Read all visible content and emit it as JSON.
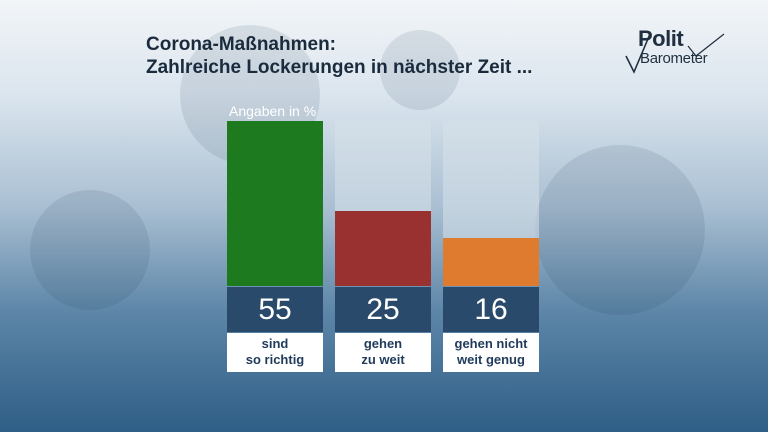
{
  "header": {
    "title_line1": "Corona-Maßnahmen:",
    "title_line2": "Zahlreiche Lockerungen in nächster Zeit ..."
  },
  "logo": {
    "line1": "Polit",
    "line2": "Barometer"
  },
  "colors": {
    "bar_green": "#1e7a1e",
    "bar_red": "#9a3131",
    "bar_orange": "#df7b2e",
    "value_band": "#2a4a6b",
    "track": "#d7e2ea"
  },
  "chart_data": {
    "type": "bar",
    "unit_label": "Angaben in %",
    "ylim": [
      0,
      55
    ],
    "categories": [
      {
        "line1": "sind",
        "line2": "so richtig",
        "value": 55,
        "color": "#1e7a1e"
      },
      {
        "line1": "gehen",
        "line2": "zu weit",
        "value": 25,
        "color": "#9a3131"
      },
      {
        "line1": "gehen nicht",
        "line2": "weit genug",
        "value": 16,
        "color": "#df7b2e"
      }
    ]
  }
}
